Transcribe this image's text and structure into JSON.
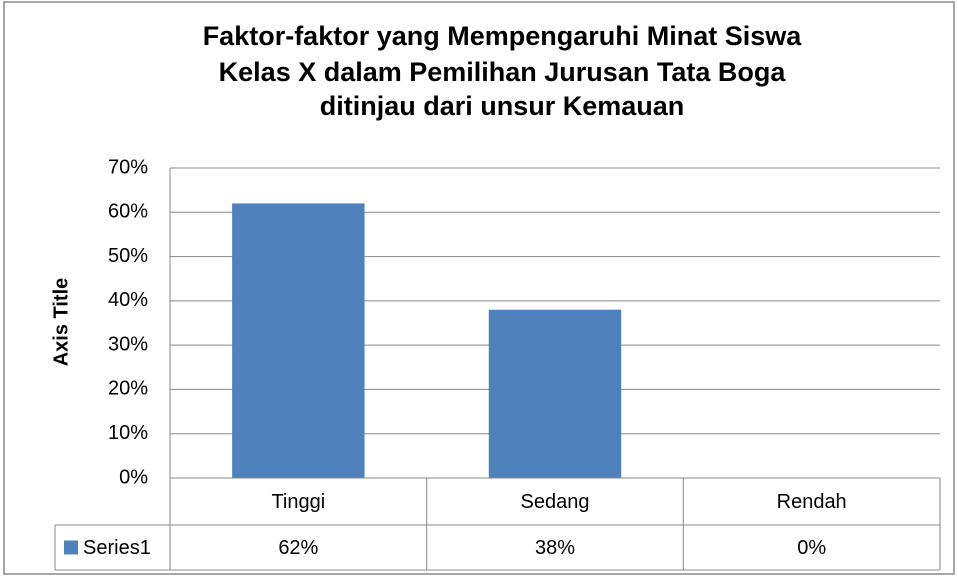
{
  "chart_data": {
    "type": "bar",
    "title": [
      "Faktor-faktor yang Mempengaruhi Minat Siswa",
      "Kelas X dalam Pemilihan Jurusan Tata Boga",
      "ditinjau dari unsur Kemauan"
    ],
    "y_axis_label": "Axis Title",
    "categories": [
      "Tinggi",
      "Sedang",
      "Rendah"
    ],
    "series": [
      {
        "name": "Series1",
        "color": "#4f81bd",
        "values": [
          62,
          38,
          0
        ],
        "value_labels": [
          "62%",
          "38%",
          "0%"
        ]
      }
    ],
    "ylim": [
      0,
      70
    ],
    "yticks": [
      {
        "value": 0,
        "label": "0%"
      },
      {
        "value": 10,
        "label": "10%"
      },
      {
        "value": 20,
        "label": "20%"
      },
      {
        "value": 30,
        "label": "30%"
      },
      {
        "value": 40,
        "label": "40%"
      },
      {
        "value": 50,
        "label": "50%"
      },
      {
        "value": 60,
        "label": "60%"
      },
      {
        "value": 70,
        "label": "70%"
      }
    ],
    "grid": true,
    "data_table": true
  }
}
